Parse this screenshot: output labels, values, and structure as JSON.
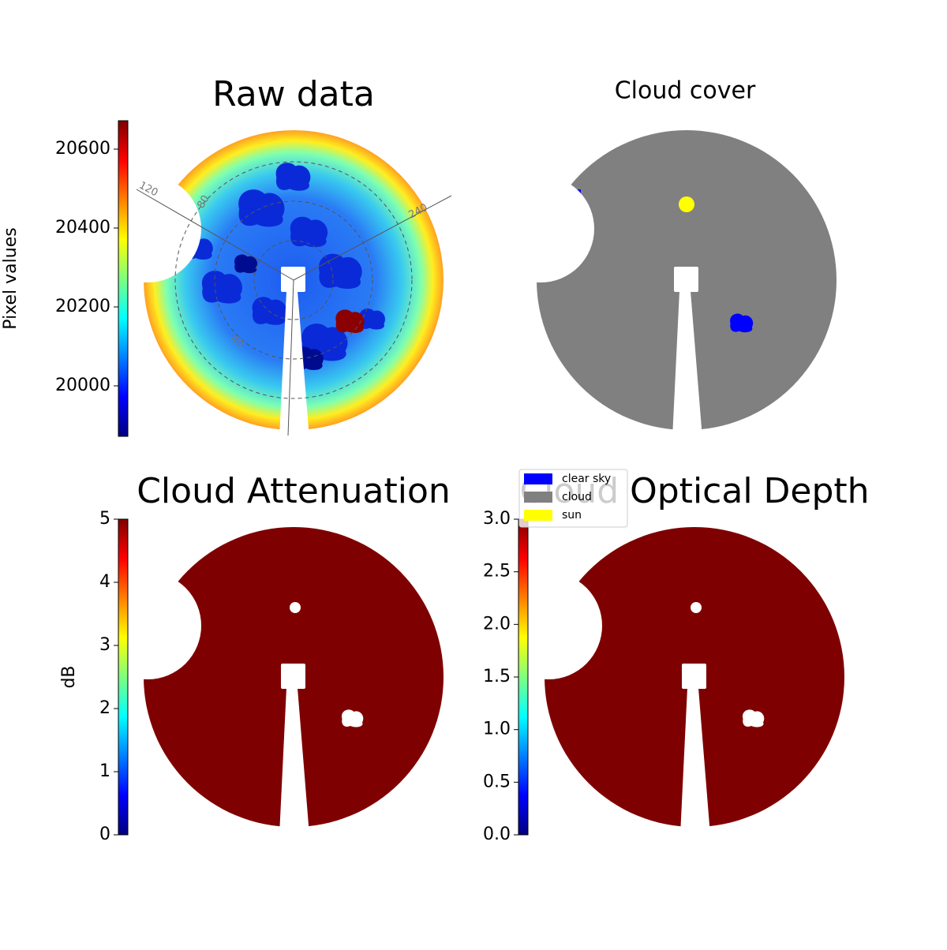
{
  "chart_data": [
    {
      "type": "image",
      "title": "Raw data",
      "colorbar_label": "Pixel values",
      "colormap": "jet",
      "ylim": [
        19872,
        20672
      ],
      "yticks": [
        20000,
        20200,
        20400,
        20600
      ],
      "polar_labels": [
        "120",
        "80",
        "240",
        "40"
      ]
    },
    {
      "type": "categorical-image",
      "title": "Cloud cover",
      "series": [
        {
          "name": "clear sky",
          "color": "#0000ff"
        },
        {
          "name": "cloud",
          "color": "#808080"
        },
        {
          "name": "sun",
          "color": "#ffff00"
        }
      ]
    },
    {
      "type": "image",
      "title": "Cloud Attenuation",
      "colorbar_label": "dB",
      "colormap": "jet",
      "fill": "#7f0000",
      "ylim": [
        0,
        5
      ],
      "yticks": [
        0,
        1,
        2,
        3,
        4,
        5
      ]
    },
    {
      "type": "image",
      "title": "Cloud Optical Depth",
      "colormap": "jet",
      "fill": "#7f0000",
      "ylim": [
        0,
        3
      ],
      "yticks": [
        {
          "value": 0,
          "label": "0.0"
        },
        {
          "value": 0.5,
          "label": "0.5"
        },
        {
          "value": 1,
          "label": "1.0"
        },
        {
          "value": 1.5,
          "label": "1.5"
        },
        {
          "value": 2,
          "label": "2.0"
        },
        {
          "value": 2.5,
          "label": "2.5"
        },
        {
          "value": 3,
          "label": "3.0"
        }
      ]
    }
  ]
}
